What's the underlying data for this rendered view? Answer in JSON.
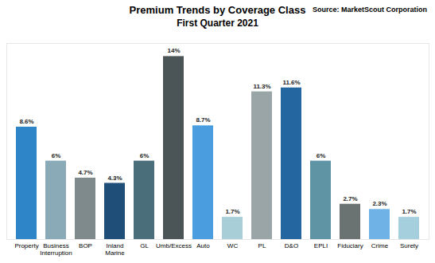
{
  "chart_data": {
    "type": "bar",
    "title": "Premium Trends by Coverage Class",
    "subtitle": "First Quarter 2021",
    "caption": "Source: MarketScout Corporation",
    "categories": [
      "Property",
      "Business Interruption",
      "BOP",
      "Inland Marine",
      "GL",
      "Umb/Excess",
      "Auto",
      "WC",
      "PL",
      "D&O",
      "EPLI",
      "Fiduciary",
      "Crime",
      "Surety"
    ],
    "values": [
      8.6,
      6,
      4.7,
      4.3,
      6,
      14,
      8.7,
      1.7,
      11.3,
      11.6,
      6,
      2.7,
      2.3,
      1.7
    ],
    "value_labels": [
      "8.6%",
      "6%",
      "4.7%",
      "4.3%",
      "6%",
      "14%",
      "8.7%",
      "1.7%",
      "11.3%",
      "11.6%",
      "6%",
      "2.7%",
      "2.3%",
      "1.7%"
    ],
    "colors": [
      "#2e86c8",
      "#8aaab8",
      "#7f8a8c",
      "#1f4e79",
      "#4a6e7a",
      "#4b5557",
      "#4a9ee0",
      "#a8cfd8",
      "#9aa5a7",
      "#2466a0",
      "#5f94a5",
      "#6a7272",
      "#6fb2e6",
      "#a6cfdd"
    ],
    "ylim": [
      0,
      15
    ],
    "data_labels": true,
    "tick_labels": "x"
  }
}
